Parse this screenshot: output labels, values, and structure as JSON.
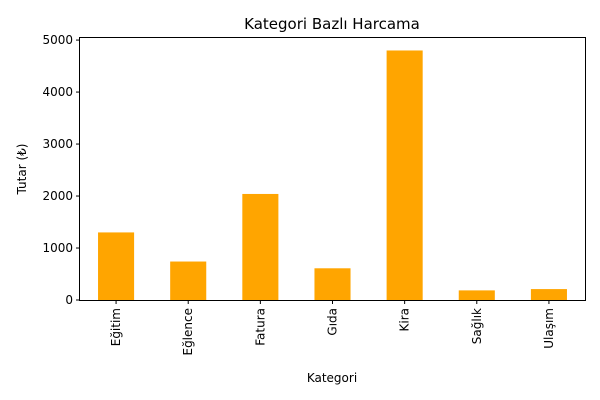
{
  "chart_data": {
    "type": "bar",
    "title": "Kategori Bazlı Harcama",
    "xlabel": "Kategori",
    "ylabel": "Tutar (₺)",
    "categories": [
      "Eğitim",
      "Eğlence",
      "Fatura",
      "Gıda",
      "Kira",
      "Sağlık",
      "Ulaşım"
    ],
    "values": [
      1300,
      740,
      2040,
      610,
      4800,
      185,
      210
    ],
    "ylim": [
      0,
      5040
    ],
    "yticks": [
      0,
      1000,
      2000,
      3000,
      4000,
      5000
    ],
    "grid": false,
    "bar_color": "#FFA500"
  }
}
